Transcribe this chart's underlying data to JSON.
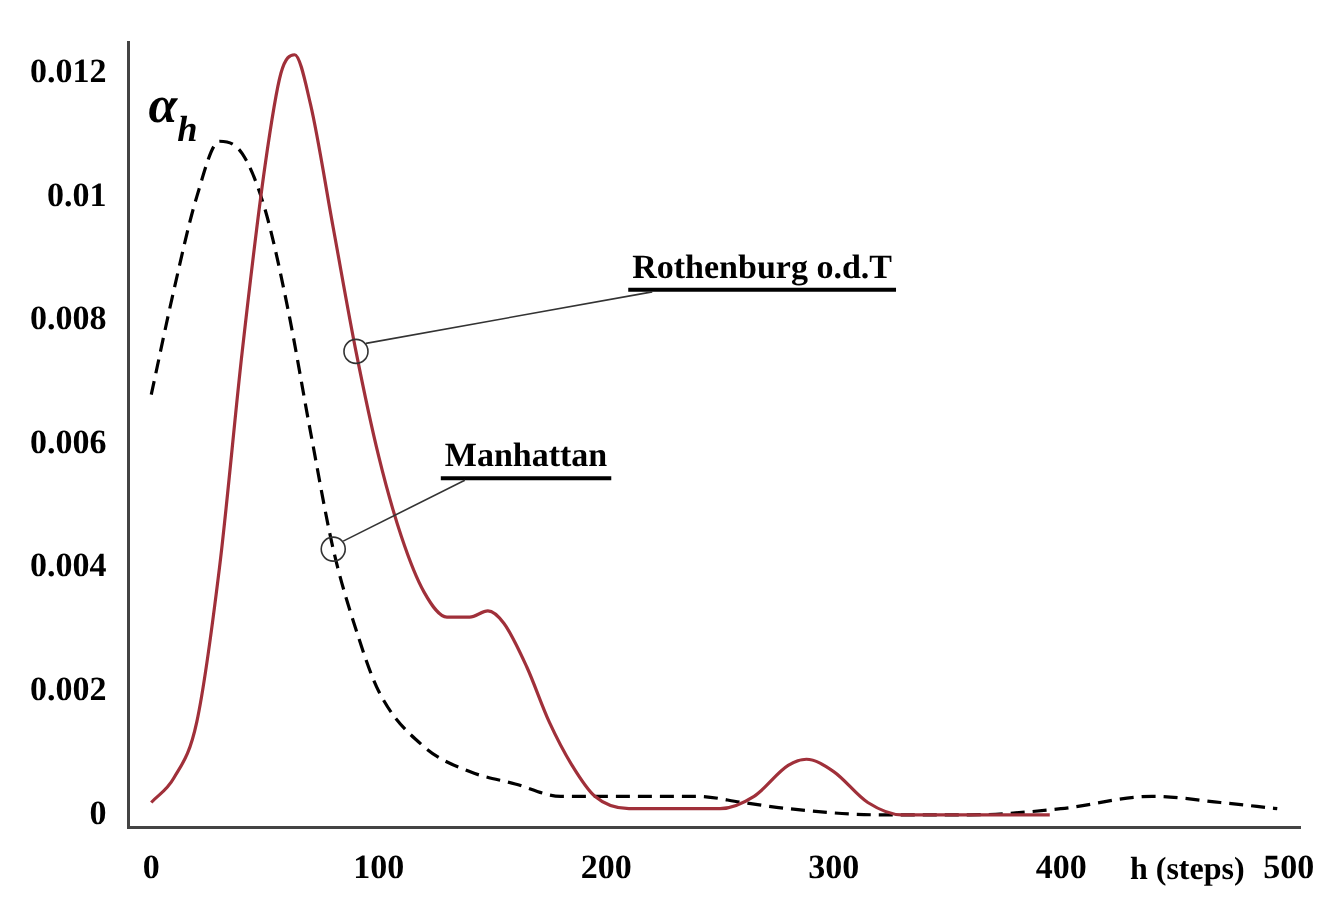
{
  "chart_data": {
    "type": "line",
    "ylabel": "α$_{h}$",
    "xlabel": "h (steps)",
    "xlim": [
      -10,
      505
    ],
    "ylim": [
      -0.0002,
      0.0125
    ],
    "xticks": [
      0,
      100,
      200,
      300,
      400,
      500
    ],
    "yticks": [
      0,
      0.002,
      0.004,
      0.006,
      0.008,
      0.01,
      0.012
    ],
    "grid": false,
    "legend": false,
    "marker": "none",
    "series": [
      {
        "name": "Rothenburg o.d.T",
        "color": "#a0303a",
        "line_style": "solid",
        "x": [
          0,
          10,
          20,
          30,
          40,
          50,
          57,
          63,
          70,
          80,
          90,
          100,
          110,
          120,
          130,
          140,
          148,
          155,
          165,
          175,
          185,
          195,
          210,
          250,
          265,
          280,
          288,
          300,
          315,
          330,
          395
        ],
        "values": [
          0.0002,
          0.0006,
          0.0015,
          0.004,
          0.0075,
          0.0105,
          0.012,
          0.0123,
          0.0115,
          0.0095,
          0.0075,
          0.0058,
          0.0045,
          0.0036,
          0.0032,
          0.0032,
          0.0033,
          0.0031,
          0.0024,
          0.0015,
          0.0008,
          0.0003,
          0.0001,
          0.0001,
          0.0003,
          0.0008,
          0.0009,
          0.0007,
          0.0002,
          0,
          0
        ]
      },
      {
        "name": "Manhattan",
        "color": "#000000",
        "line_style": "dashed",
        "x": [
          0,
          10,
          20,
          30,
          40,
          50,
          60,
          70,
          80,
          90,
          100,
          120,
          140,
          160,
          180,
          200,
          220,
          240,
          260,
          280,
          320,
          360,
          400,
          440,
          470,
          495
        ],
        "values": [
          0.0068,
          0.0085,
          0.01,
          0.0109,
          0.0107,
          0.0098,
          0.0082,
          0.0062,
          0.0043,
          0.003,
          0.002,
          0.0011,
          0.0007,
          0.0005,
          0.0003,
          0.0003,
          0.0003,
          0.0003,
          0.0002,
          0.0001,
          0,
          0,
          0.0001,
          0.0003,
          0.0002,
          0.0001
        ]
      }
    ]
  }
}
